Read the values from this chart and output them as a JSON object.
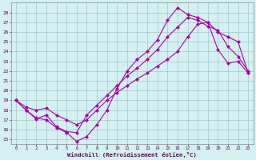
{
  "xlabel": "Windchill (Refroidissement éolien,°C)",
  "bg_color": "#d4f0f0",
  "grid_color": "#a0c8c8",
  "line_color": "#aa00aa",
  "xlim": [
    -0.5,
    23.5
  ],
  "ylim": [
    14.5,
    29.0
  ],
  "xticks": [
    0,
    1,
    2,
    3,
    4,
    5,
    6,
    7,
    8,
    9,
    10,
    11,
    12,
    13,
    14,
    15,
    16,
    17,
    18,
    19,
    20,
    21,
    22,
    23
  ],
  "yticks": [
    15,
    16,
    17,
    18,
    19,
    20,
    21,
    22,
    23,
    24,
    25,
    26,
    27,
    28
  ],
  "series1_x": [
    0,
    1,
    2,
    3,
    4,
    5,
    6,
    7,
    8,
    9,
    10,
    11,
    12,
    13,
    14,
    15,
    16,
    17,
    18,
    19,
    20,
    21,
    22,
    23
  ],
  "series1_y": [
    19.0,
    18.0,
    17.1,
    17.5,
    16.3,
    15.8,
    15.7,
    17.5,
    18.5,
    19.5,
    20.5,
    21.5,
    22.3,
    23.2,
    24.2,
    25.5,
    26.5,
    27.5,
    27.2,
    26.6,
    26.2,
    24.5,
    23.5,
    22.0
  ],
  "series2_x": [
    0,
    1,
    2,
    3,
    4,
    5,
    6,
    7,
    8,
    9,
    10,
    11,
    12,
    13,
    14,
    15,
    16,
    17,
    18,
    19,
    20,
    21,
    22,
    23
  ],
  "series2_y": [
    19.0,
    18.0,
    17.2,
    17.0,
    16.2,
    15.7,
    14.8,
    15.3,
    16.5,
    18.0,
    20.2,
    22.0,
    23.2,
    24.0,
    25.2,
    27.2,
    28.5,
    27.8,
    27.5,
    27.0,
    24.2,
    22.8,
    23.0,
    21.8
  ],
  "series3_x": [
    0,
    1,
    2,
    3,
    4,
    5,
    6,
    7,
    8,
    9,
    10,
    11,
    12,
    13,
    14,
    15,
    16,
    17,
    18,
    19,
    20,
    21,
    22,
    23
  ],
  "series3_y": [
    19.0,
    18.3,
    18.0,
    18.2,
    17.5,
    17.0,
    16.5,
    17.0,
    18.0,
    19.0,
    19.8,
    20.5,
    21.2,
    21.8,
    22.5,
    23.2,
    24.0,
    25.5,
    26.8,
    27.0,
    26.0,
    25.5,
    25.0,
    21.8
  ]
}
